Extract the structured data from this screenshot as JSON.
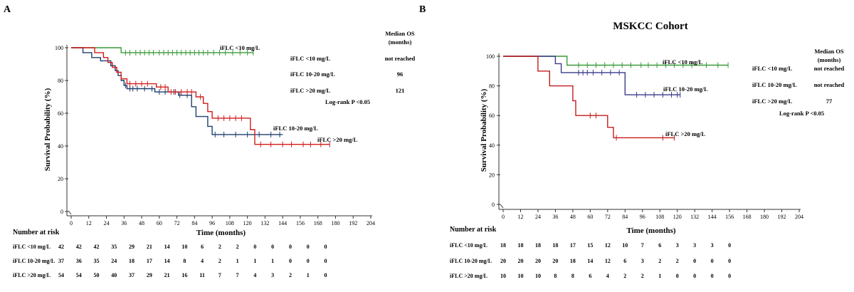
{
  "chart_data": [
    {
      "type": "line",
      "panel_label": "A",
      "title": "",
      "xlabel": "Time (months)",
      "ylabel": "Survival Probability (%)",
      "xlim": [
        0,
        204
      ],
      "ylim": [
        0,
        100
      ],
      "xticks": [
        0,
        12,
        24,
        36,
        48,
        60,
        72,
        84,
        96,
        108,
        120,
        132,
        144,
        156,
        168,
        180,
        192,
        204
      ],
      "yticks": [
        0,
        20,
        40,
        60,
        80,
        100
      ],
      "series": [
        {
          "name": "iFLC <10 mg/L",
          "color": "#3a9a3a",
          "steps": [
            [
              0,
              100
            ],
            [
              34,
              100
            ],
            [
              34,
              97
            ],
            [
              124,
              97
            ]
          ],
          "censor_x": [
            37,
            40,
            44,
            47,
            50,
            53,
            56,
            60,
            63,
            66,
            69,
            72,
            75,
            78,
            81,
            84,
            87,
            90,
            93,
            97,
            101,
            105,
            110,
            115,
            120,
            124
          ]
        },
        {
          "name": "iFLC 10-20 mg/L",
          "color": "#1f3f6e",
          "steps": [
            [
              0,
              100
            ],
            [
              8,
              100
            ],
            [
              8,
              97
            ],
            [
              14,
              97
            ],
            [
              14,
              94
            ],
            [
              20,
              94
            ],
            [
              20,
              92
            ],
            [
              27,
              92
            ],
            [
              27,
              89
            ],
            [
              30,
              89
            ],
            [
              30,
              86
            ],
            [
              32,
              86
            ],
            [
              32,
              83
            ],
            [
              34,
              83
            ],
            [
              34,
              80
            ],
            [
              36,
              80
            ],
            [
              36,
              77
            ],
            [
              38,
              77
            ],
            [
              38,
              75
            ],
            [
              57,
              75
            ],
            [
              57,
              73
            ],
            [
              73,
              73
            ],
            [
              73,
              71
            ],
            [
              82,
              71
            ],
            [
              82,
              64
            ],
            [
              85,
              64
            ],
            [
              85,
              58
            ],
            [
              93,
              58
            ],
            [
              93,
              52
            ],
            [
              96,
              52
            ],
            [
              96,
              47
            ],
            [
              144,
              47
            ]
          ],
          "censor_x": [
            37,
            40,
            42,
            45,
            50,
            55,
            60,
            64,
            70,
            74,
            79,
            98,
            104,
            112,
            120,
            128,
            136,
            142
          ]
        },
        {
          "name": "iFLC >20 mg/L",
          "color": "#d11c1c",
          "steps": [
            [
              0,
              100
            ],
            [
              16,
              100
            ],
            [
              16,
              97
            ],
            [
              22,
              97
            ],
            [
              22,
              94
            ],
            [
              25,
              94
            ],
            [
              25,
              91
            ],
            [
              28,
              91
            ],
            [
              28,
              88
            ],
            [
              31,
              88
            ],
            [
              31,
              85
            ],
            [
              34,
              85
            ],
            [
              34,
              81
            ],
            [
              38,
              81
            ],
            [
              38,
              78
            ],
            [
              58,
              78
            ],
            [
              58,
              76
            ],
            [
              66,
              76
            ],
            [
              66,
              73
            ],
            [
              85,
              73
            ],
            [
              85,
              70
            ],
            [
              90,
              70
            ],
            [
              90,
              66
            ],
            [
              93,
              66
            ],
            [
              93,
              61
            ],
            [
              96,
              61
            ],
            [
              96,
              57
            ],
            [
              122,
              57
            ],
            [
              122,
              50
            ],
            [
              125,
              50
            ],
            [
              125,
              41
            ],
            [
              176,
              41
            ]
          ],
          "censor_x": [
            40,
            44,
            48,
            52,
            61,
            64,
            68,
            71,
            75,
            79,
            82,
            88,
            100,
            104,
            108,
            112,
            116,
            129,
            136,
            144,
            150,
            158,
            163,
            170,
            176
          ]
        }
      ],
      "legend": [
        {
          "name": "iFLC <10 mg/L",
          "median_os": "not reached"
        },
        {
          "name": "iFLC 10-20 mg/L",
          "median_os": "96"
        },
        {
          "name": "iFLC >20 mg/L",
          "median_os": "121"
        }
      ],
      "legend_header": "Median OS (months)",
      "stat": "Log-rank P <0.05",
      "curve_labels": [
        "iFLC <10 mg/L",
        "iFLC 10-20 mg/L",
        "iFLC >20 mg/L"
      ],
      "risk_title": "Number at risk",
      "risk_table": [
        {
          "label": "iFLC <10 mg/L",
          "values": [
            42,
            42,
            42,
            35,
            29,
            21,
            14,
            10,
            6,
            2,
            2,
            0,
            0,
            0,
            0,
            0
          ]
        },
        {
          "label": "iFLC 10-20 mg/L",
          "values": [
            37,
            36,
            35,
            24,
            18,
            17,
            14,
            8,
            4,
            2,
            1,
            1,
            1,
            0,
            0,
            0
          ]
        },
        {
          "label": "iFLC >20 mg/L",
          "values": [
            54,
            54,
            50,
            40,
            37,
            29,
            21,
            16,
            11,
            7,
            7,
            4,
            3,
            2,
            1,
            0
          ]
        }
      ]
    },
    {
      "type": "line",
      "panel_label": "B",
      "title": "MSKCC Cohort",
      "xlabel": "Time (months)",
      "ylabel": "Survival Probability (%)",
      "xlim": [
        0,
        204
      ],
      "ylim": [
        0,
        100
      ],
      "xticks": [
        0,
        12,
        24,
        36,
        48,
        60,
        72,
        84,
        96,
        108,
        120,
        132,
        144,
        156,
        168,
        180,
        192,
        204
      ],
      "yticks": [
        0,
        20,
        40,
        60,
        80,
        100
      ],
      "series": [
        {
          "name": "iFLC <10 mg/L",
          "color": "#3a9a3a",
          "steps": [
            [
              0,
              100
            ],
            [
              44,
              100
            ],
            [
              44,
              94
            ],
            [
              155,
              94
            ]
          ],
          "censor_x": [
            52,
            58,
            64,
            70,
            76,
            82,
            88,
            95,
            100,
            106,
            112,
            118,
            124,
            130,
            140,
            148,
            155
          ]
        },
        {
          "name": "iFLC 10-20 mg/L",
          "color": "#3a3a8c",
          "steps": [
            [
              0,
              100
            ],
            [
              36,
              100
            ],
            [
              36,
              95
            ],
            [
              40,
              95
            ],
            [
              40,
              89
            ],
            [
              84,
              89
            ],
            [
              84,
              74
            ],
            [
              122,
              74
            ]
          ],
          "censor_x": [
            52,
            55,
            58,
            62,
            68,
            74,
            80,
            92,
            98,
            104,
            110,
            116,
            120,
            122
          ]
        },
        {
          "name": "iFLC >20 mg/L",
          "color": "#c41c1c",
          "steps": [
            [
              0,
              100
            ],
            [
              24,
              100
            ],
            [
              24,
              90
            ],
            [
              32,
              90
            ],
            [
              32,
              80
            ],
            [
              48,
              80
            ],
            [
              48,
              70
            ],
            [
              50,
              70
            ],
            [
              50,
              60
            ],
            [
              72,
              60
            ],
            [
              72,
              52
            ],
            [
              76,
              52
            ],
            [
              76,
              45
            ],
            [
              118,
              45
            ]
          ],
          "censor_x": [
            60,
            64,
            78,
            110,
            118
          ]
        }
      ],
      "legend": [
        {
          "name": "iFLC <10 mg/L",
          "median_os": "not reached"
        },
        {
          "name": "iFLC 10-20 mg/L",
          "median_os": "not reached"
        },
        {
          "name": "iFLC >20 mg/L",
          "median_os": "77"
        }
      ],
      "legend_header": "Median OS (months)",
      "stat": "Log-rank P <0.05",
      "curve_labels": [
        "iFLC <10 mg/L",
        "iFLC 10-20 mg/L",
        "iFLC >20 mg/L"
      ],
      "risk_title": "Number at risk",
      "risk_table": [
        {
          "label": "iFLC <10 mg/L",
          "values": [
            18,
            18,
            18,
            18,
            17,
            15,
            12,
            10,
            7,
            6,
            3,
            3,
            3,
            0
          ]
        },
        {
          "label": "iFLC 10-20 mg/L",
          "values": [
            20,
            20,
            20,
            20,
            18,
            14,
            12,
            6,
            3,
            2,
            2,
            0,
            0,
            0
          ]
        },
        {
          "label": "iFLC >20 mg/L",
          "values": [
            10,
            10,
            10,
            8,
            8,
            6,
            4,
            2,
            2,
            1,
            0,
            0,
            0,
            0
          ]
        }
      ]
    }
  ]
}
